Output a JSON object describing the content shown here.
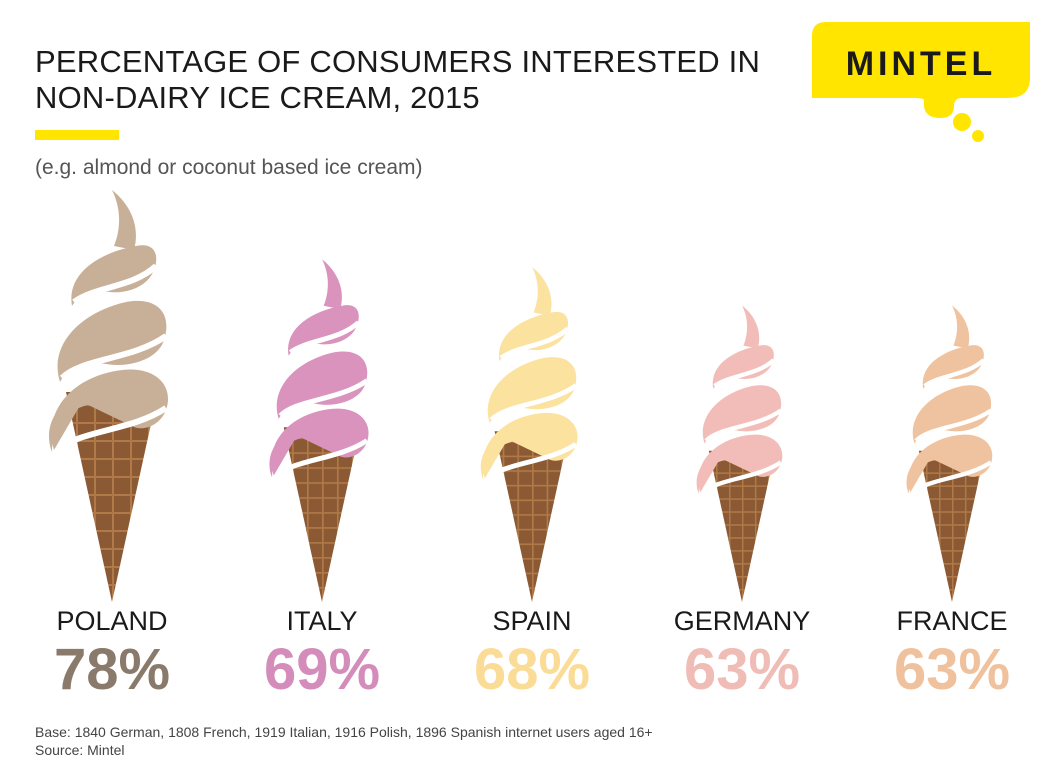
{
  "title": "PERCENTAGE OF CONSUMERS INTERESTED IN NON-DAIRY ICE CREAM, 2015",
  "subtitle": "(e.g. almond or coconut based ice cream)",
  "logo_text": "MINTEL",
  "footer": {
    "base": "Base: 1840 German, 1808 French, 1919 Italian, 1916 Polish, 1896 Spanish internet users aged 16+",
    "source": "Source: Mintel"
  },
  "colors": {
    "accent": "#ffe500",
    "cone": "#8b5a34",
    "cone_grid": "#b07a48",
    "text": "#1a1a1a"
  },
  "chart_data": {
    "type": "bar",
    "title": "PERCENTAGE OF CONSUMERS INTERESTED IN NON-DAIRY ICE CREAM, 2015",
    "categories": [
      "POLAND",
      "ITALY",
      "SPAIN",
      "GERMANY",
      "FRANCE"
    ],
    "values": [
      78,
      69,
      68,
      63,
      63
    ],
    "value_labels": [
      "78%",
      "69%",
      "68%",
      "63%",
      "63%"
    ],
    "unit": "%",
    "scream_colors": [
      "#c8b098",
      "#d993bd",
      "#fce29f",
      "#f2bdb8",
      "#efc39f"
    ],
    "value_colors": [
      "#8a7a6c",
      "#d48cba",
      "#fbdc96",
      "#f0bcb6",
      "#efc19d"
    ]
  }
}
